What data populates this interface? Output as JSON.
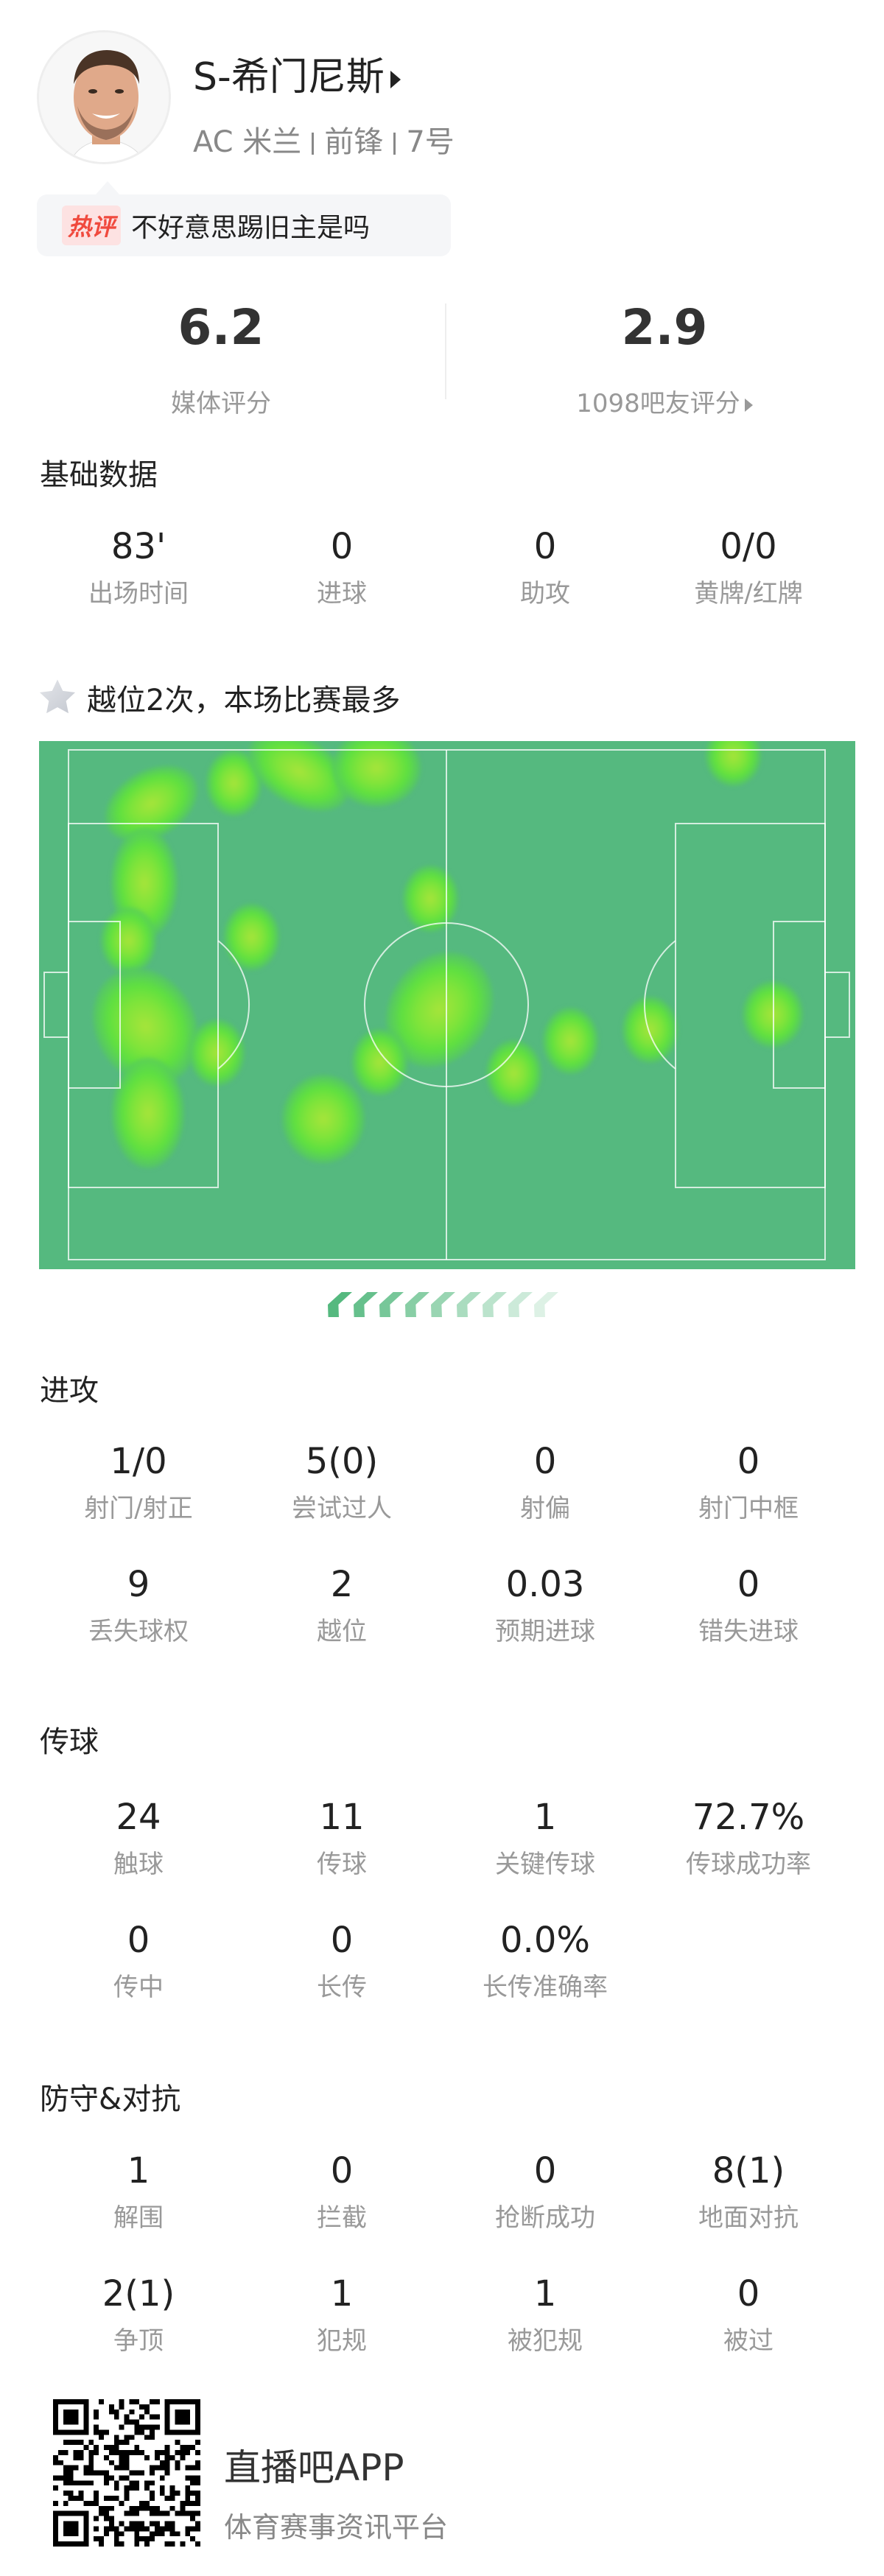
{
  "player": {
    "name": "S-希门尼斯",
    "team": "AC 米兰",
    "position": "前锋",
    "number": "7号"
  },
  "hot_comment": {
    "tag": "热评",
    "text": "不好意思踢旧主是吗"
  },
  "ratings": {
    "media": {
      "value": "6.2",
      "label": "媒体评分"
    },
    "fans": {
      "value": "2.9",
      "label": "1098吧友评分"
    }
  },
  "basic": {
    "title": "基础数据",
    "stats": [
      {
        "v": "83'",
        "l": "出场时间"
      },
      {
        "v": "0",
        "l": "进球"
      },
      {
        "v": "0",
        "l": "助攻"
      },
      {
        "v": "0/0",
        "l": "黄牌/红牌"
      }
    ]
  },
  "highlight": {
    "icon": "star-icon",
    "text": "越位2次，本场比赛最多"
  },
  "heatmap": {
    "pitch_color": "#55b97f",
    "hot_color": "#7fe43a"
  },
  "attack": {
    "title": "进攻",
    "stats": [
      {
        "v": "1/0",
        "l": "射门/射正"
      },
      {
        "v": "5(0)",
        "l": "尝试过人"
      },
      {
        "v": "0",
        "l": "射偏"
      },
      {
        "v": "0",
        "l": "射门中框"
      },
      {
        "v": "9",
        "l": "丢失球权"
      },
      {
        "v": "2",
        "l": "越位"
      },
      {
        "v": "0.03",
        "l": "预期进球"
      },
      {
        "v": "0",
        "l": "错失进球"
      }
    ]
  },
  "passing": {
    "title": "传球",
    "stats": [
      {
        "v": "24",
        "l": "触球"
      },
      {
        "v": "11",
        "l": "传球"
      },
      {
        "v": "1",
        "l": "关键传球"
      },
      {
        "v": "72.7%",
        "l": "传球成功率"
      },
      {
        "v": "0",
        "l": "传中"
      },
      {
        "v": "0",
        "l": "长传"
      },
      {
        "v": "0.0%",
        "l": "长传准确率"
      }
    ]
  },
  "defense": {
    "title": "防守&对抗",
    "stats": [
      {
        "v": "1",
        "l": "解围"
      },
      {
        "v": "0",
        "l": "拦截"
      },
      {
        "v": "0",
        "l": "抢断成功"
      },
      {
        "v": "8(1)",
        "l": "地面对抗"
      },
      {
        "v": "2(1)",
        "l": "争顶"
      },
      {
        "v": "1",
        "l": "犯规"
      },
      {
        "v": "1",
        "l": "被犯规"
      },
      {
        "v": "0",
        "l": "被过"
      }
    ]
  },
  "footer": {
    "app": "直播吧APP",
    "slogan": "体育赛事资讯平台"
  }
}
